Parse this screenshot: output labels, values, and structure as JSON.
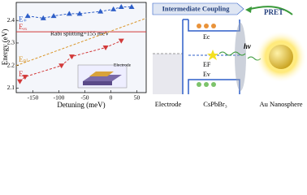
{
  "chart_data": {
    "type": "line",
    "xlabel": "Detuning (meV)",
    "ylabel": "Energy (eV)",
    "xlim": [
      -182,
      68
    ],
    "ylim": [
      2.08,
      2.48
    ],
    "xticks": [
      -150,
      -100,
      -50,
      0,
      50
    ],
    "yticks": [
      2.1,
      2.2,
      2.3,
      2.4
    ],
    "annotation": "Rabi splitting=155 meV",
    "inset_label": "Electrode",
    "series": [
      {
        "name": "E₊",
        "color": "#2f5fc8",
        "marker": "triangle-up",
        "dash": true,
        "x": [
          -160,
          -130,
          -110,
          -80,
          -60,
          -20,
          5,
          20,
          40
        ],
        "values": [
          2.42,
          2.41,
          2.42,
          2.43,
          2.43,
          2.44,
          2.45,
          2.46,
          2.46
        ]
      },
      {
        "name": "Eₑₓ",
        "color": "#d23a3a",
        "marker": null,
        "dash": false,
        "x": [
          -182,
          68
        ],
        "values": [
          2.35,
          2.35
        ]
      },
      {
        "name": "Eₚₗ",
        "color": "#d9962a",
        "marker": null,
        "dash": true,
        "x": [
          -182,
          68
        ],
        "values": [
          2.2,
          2.41
        ]
      },
      {
        "name": "E₋",
        "color": "#d23a3a",
        "marker": "triangle-down",
        "dash": true,
        "x": [
          -175,
          -165,
          -95,
          -75,
          -10,
          20
        ],
        "values": [
          2.13,
          2.15,
          2.2,
          2.24,
          2.28,
          2.31
        ]
      }
    ]
  },
  "diagram": {
    "coupling": "Intermediate Coupling",
    "pret": "PRET",
    "ec": "Ec",
    "ef": "EF",
    "ev": "Ev",
    "hv": "hν",
    "electrode": "Electrode",
    "perovskite": "CsPbBr₃",
    "au": "Au Nanosphere"
  }
}
